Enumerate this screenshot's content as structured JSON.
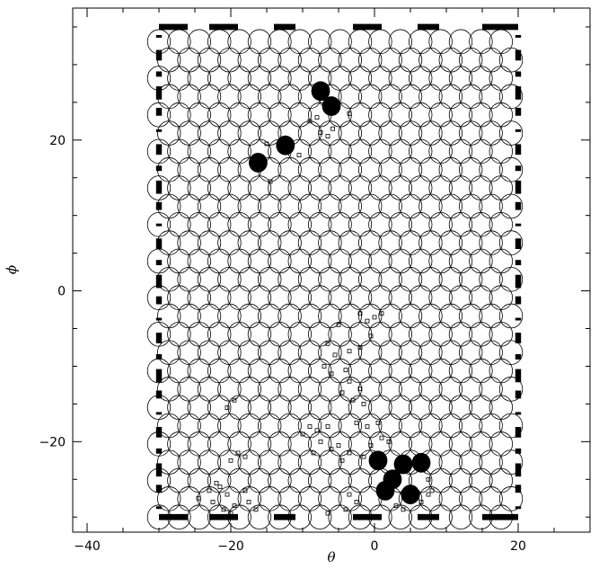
{
  "chart_data": {
    "type": "scatter",
    "title": "",
    "xlabel": "θ",
    "ylabel": "ϕ",
    "xlim": [
      -42,
      30
    ],
    "ylim": [
      -32,
      37.5
    ],
    "grid": false,
    "x_ticks": [
      -40,
      -20,
      0,
      20
    ],
    "y_ticks": [
      -20,
      0,
      20
    ],
    "x_tick_labels": [
      "−40",
      "−20",
      "0",
      "20"
    ],
    "y_tick_labels": [
      "−20",
      "0",
      "20"
    ],
    "circle_grid": {
      "description": "hexagonal tiling of open circles",
      "x_range": [
        -30,
        20
      ],
      "y_range": [
        -30,
        35
      ],
      "spacing": 2.8,
      "radius": 1.6
    },
    "dense_clusters": [
      {
        "x": -16.2,
        "y": 17.0
      },
      {
        "x": -12.4,
        "y": 19.3
      },
      {
        "x": -7.5,
        "y": 26.5
      },
      {
        "x": -6.0,
        "y": 24.5
      },
      {
        "x": 0.5,
        "y": -22.5
      },
      {
        "x": 2.5,
        "y": -25.0
      },
      {
        "x": 4.0,
        "y": -23.0
      },
      {
        "x": 6.5,
        "y": -22.8
      },
      {
        "x": 1.5,
        "y": -26.5
      },
      {
        "x": 5.0,
        "y": -27.0
      }
    ],
    "small_squares": [
      {
        "x": -6.5,
        "y": 20.5
      },
      {
        "x": -7.5,
        "y": 21.0
      },
      {
        "x": -5.8,
        "y": 21.5
      },
      {
        "x": -9.0,
        "y": 22.5
      },
      {
        "x": -8.0,
        "y": 23.0
      },
      {
        "x": -3.5,
        "y": 23.5
      },
      {
        "x": -14.5,
        "y": 14.5
      },
      {
        "x": -15.0,
        "y": 19.5
      },
      {
        "x": -10.5,
        "y": 18.0
      },
      {
        "x": -2.0,
        "y": -3.0
      },
      {
        "x": -1.0,
        "y": -4.0
      },
      {
        "x": 0.0,
        "y": -3.5
      },
      {
        "x": 1.0,
        "y": -3.0
      },
      {
        "x": -5.0,
        "y": -4.5
      },
      {
        "x": -0.5,
        "y": -6.0
      },
      {
        "x": -6.5,
        "y": -7.0
      },
      {
        "x": -5.5,
        "y": -8.5
      },
      {
        "x": -3.5,
        "y": -8.0
      },
      {
        "x": -2.0,
        "y": -7.5
      },
      {
        "x": -7.0,
        "y": -10.0
      },
      {
        "x": -6.0,
        "y": -11.0
      },
      {
        "x": -4.0,
        "y": -10.5
      },
      {
        "x": -3.5,
        "y": -12.0
      },
      {
        "x": -2.0,
        "y": -13.0
      },
      {
        "x": -4.5,
        "y": -13.5
      },
      {
        "x": -3.0,
        "y": -14.5
      },
      {
        "x": -1.5,
        "y": -15.0
      },
      {
        "x": -19.5,
        "y": -14.5
      },
      {
        "x": -20.5,
        "y": -15.5
      },
      {
        "x": -9.0,
        "y": -18.0
      },
      {
        "x": -10.0,
        "y": -19.0
      },
      {
        "x": -8.0,
        "y": -18.5
      },
      {
        "x": -6.5,
        "y": -18.0
      },
      {
        "x": -7.5,
        "y": -20.0
      },
      {
        "x": -6.0,
        "y": -21.0
      },
      {
        "x": -8.5,
        "y": -21.5
      },
      {
        "x": -5.0,
        "y": -20.5
      },
      {
        "x": -4.5,
        "y": -22.5
      },
      {
        "x": -3.5,
        "y": -21.5
      },
      {
        "x": -2.5,
        "y": -17.5
      },
      {
        "x": -1.0,
        "y": -18.0
      },
      {
        "x": 0.5,
        "y": -17.5
      },
      {
        "x": -19.0,
        "y": -21.5
      },
      {
        "x": -20.0,
        "y": -22.5
      },
      {
        "x": -18.0,
        "y": -22.0
      },
      {
        "x": -22.0,
        "y": -25.5
      },
      {
        "x": -23.0,
        "y": -26.5
      },
      {
        "x": -21.5,
        "y": -26.0
      },
      {
        "x": -20.5,
        "y": -27.0
      },
      {
        "x": -22.5,
        "y": -28.0
      },
      {
        "x": -19.5,
        "y": -28.5
      },
      {
        "x": -21.0,
        "y": -29.0
      },
      {
        "x": -20.0,
        "y": -29.5
      },
      {
        "x": -24.5,
        "y": -27.5
      },
      {
        "x": -18.0,
        "y": -26.5
      },
      {
        "x": -17.5,
        "y": -28.0
      },
      {
        "x": -16.5,
        "y": -29.0
      },
      {
        "x": -3.5,
        "y": -27.0
      },
      {
        "x": -2.5,
        "y": -28.0
      },
      {
        "x": -4.0,
        "y": -29.0
      },
      {
        "x": -6.5,
        "y": -29.5
      },
      {
        "x": 3.0,
        "y": -28.5
      },
      {
        "x": 4.0,
        "y": -29.0
      },
      {
        "x": 6.5,
        "y": -28.0
      },
      {
        "x": 7.5,
        "y": -27.0
      },
      {
        "x": -1.5,
        "y": -22.0
      },
      {
        "x": -0.5,
        "y": -20.5
      },
      {
        "x": 1.0,
        "y": -19.5
      },
      {
        "x": 2.0,
        "y": -20.0
      },
      {
        "x": 7.5,
        "y": -25.0
      },
      {
        "x": 8.0,
        "y": -26.5
      }
    ],
    "edge_fill_color": "#000000",
    "marker_color": "#000000"
  }
}
